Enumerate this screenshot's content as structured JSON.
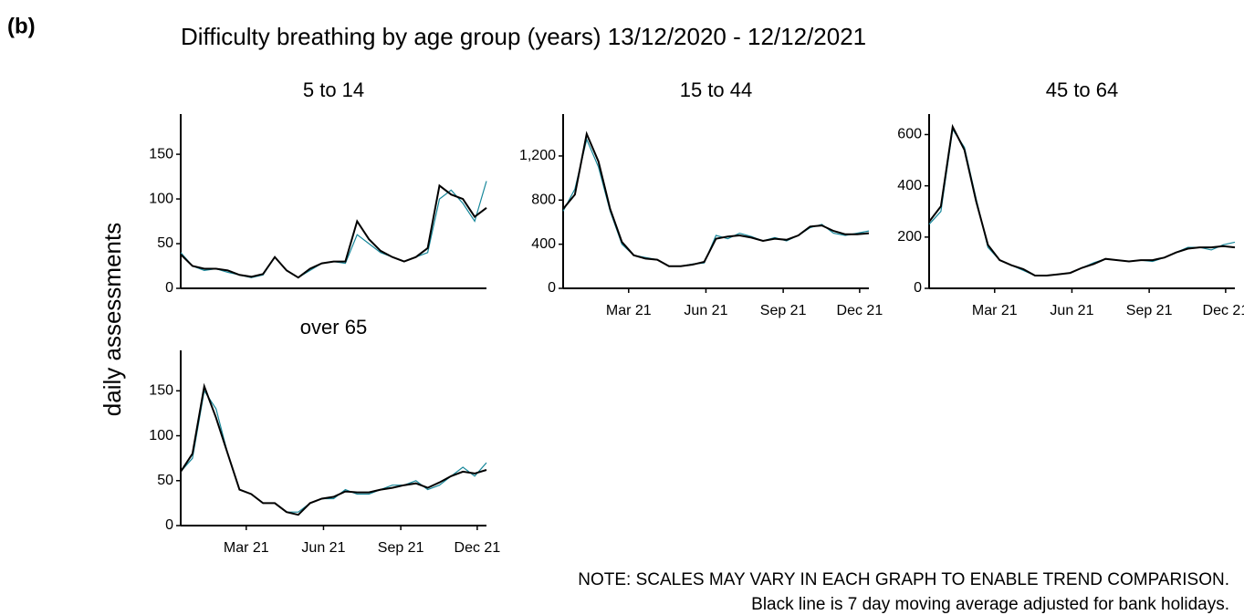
{
  "panel_label": "(b)",
  "title": "Difficulty breathing by age group (years) 13/12/2020 - 12/12/2021",
  "y_label": "daily assessments",
  "notes": [
    "NOTE: SCALES MAY VARY IN EACH GRAPH TO ENABLE TREND COMPARISON.",
    "Black line is 7 day moving average adjusted for bank holidays."
  ],
  "chart_data": [
    {
      "type": "line",
      "title": "5 to 14",
      "x": [
        "2020-12-13",
        "2020-12-27",
        "2021-01-10",
        "2021-01-24",
        "2021-02-07",
        "2021-02-21",
        "2021-03-07",
        "2021-03-21",
        "2021-04-04",
        "2021-04-18",
        "2021-05-02",
        "2021-05-16",
        "2021-05-30",
        "2021-06-13",
        "2021-06-27",
        "2021-07-11",
        "2021-07-25",
        "2021-08-08",
        "2021-08-22",
        "2021-09-05",
        "2021-09-19",
        "2021-10-03",
        "2021-10-17",
        "2021-10-31",
        "2021-11-14",
        "2021-11-28",
        "2021-12-12"
      ],
      "series": [
        {
          "color": "#17879a",
          "values": [
            40,
            25,
            20,
            22,
            18,
            15,
            12,
            15,
            35,
            20,
            12,
            20,
            28,
            30,
            28,
            60,
            50,
            40,
            35,
            30,
            35,
            40,
            100,
            110,
            95,
            75,
            120
          ]
        },
        {
          "color": "#000000",
          "values": [
            38,
            25,
            22,
            22,
            20,
            15,
            13,
            16,
            35,
            20,
            12,
            22,
            28,
            30,
            30,
            75,
            55,
            42,
            35,
            30,
            35,
            45,
            115,
            105,
            100,
            80,
            90
          ]
        }
      ],
      "xlim": [
        "2020-12-13",
        "2021-12-12"
      ],
      "ylim": [
        0,
        195
      ],
      "yticks": [
        0,
        50,
        100,
        150
      ]
    },
    {
      "type": "line",
      "title": "15 to 44",
      "x": [
        "2020-12-13",
        "2020-12-27",
        "2021-01-10",
        "2021-01-24",
        "2021-02-07",
        "2021-02-21",
        "2021-03-07",
        "2021-03-21",
        "2021-04-04",
        "2021-04-18",
        "2021-05-02",
        "2021-05-16",
        "2021-05-30",
        "2021-06-13",
        "2021-06-27",
        "2021-07-11",
        "2021-07-25",
        "2021-08-08",
        "2021-08-22",
        "2021-09-05",
        "2021-09-19",
        "2021-10-03",
        "2021-10-17",
        "2021-10-31",
        "2021-11-14",
        "2021-11-28",
        "2021-12-12"
      ],
      "series": [
        {
          "color": "#17879a",
          "values": [
            700,
            900,
            1350,
            1100,
            700,
            400,
            300,
            280,
            260,
            200,
            200,
            220,
            230,
            480,
            450,
            500,
            470,
            430,
            460,
            430,
            480,
            550,
            580,
            500,
            480,
            500,
            520
          ]
        },
        {
          "color": "#000000",
          "values": [
            720,
            850,
            1400,
            1150,
            720,
            420,
            300,
            270,
            260,
            200,
            200,
            215,
            240,
            450,
            470,
            480,
            460,
            430,
            450,
            440,
            480,
            560,
            570,
            520,
            490,
            490,
            500
          ]
        }
      ],
      "xlim": [
        "2020-12-13",
        "2021-12-12"
      ],
      "ylim": [
        0,
        1580
      ],
      "yticks": [
        0,
        400,
        800,
        {
          "value": 1200,
          "label": "1,200"
        }
      ],
      "xticks": [
        {
          "value": "2021-03-01",
          "label": "Mar 21"
        },
        {
          "value": "2021-06-01",
          "label": "Jun 21"
        },
        {
          "value": "2021-09-01",
          "label": "Sep 21"
        },
        {
          "value": "2021-12-01",
          "label": "Dec 21"
        }
      ]
    },
    {
      "type": "line",
      "title": "45 to 64",
      "x": [
        "2020-12-13",
        "2020-12-27",
        "2021-01-10",
        "2021-01-24",
        "2021-02-07",
        "2021-02-21",
        "2021-03-07",
        "2021-03-21",
        "2021-04-04",
        "2021-04-18",
        "2021-05-02",
        "2021-05-16",
        "2021-05-30",
        "2021-06-13",
        "2021-06-27",
        "2021-07-11",
        "2021-07-25",
        "2021-08-08",
        "2021-08-22",
        "2021-09-05",
        "2021-09-19",
        "2021-10-03",
        "2021-10-17",
        "2021-10-31",
        "2021-11-14",
        "2021-11-28",
        "2021-12-12"
      ],
      "series": [
        {
          "color": "#17879a",
          "values": [
            250,
            300,
            620,
            550,
            350,
            160,
            110,
            90,
            70,
            50,
            50,
            55,
            60,
            80,
            100,
            115,
            110,
            105,
            110,
            105,
            120,
            140,
            160,
            160,
            150,
            170,
            180
          ]
        },
        {
          "color": "#000000",
          "values": [
            260,
            320,
            630,
            540,
            340,
            170,
            110,
            90,
            75,
            50,
            50,
            55,
            60,
            80,
            95,
            115,
            110,
            105,
            110,
            110,
            120,
            140,
            155,
            160,
            160,
            165,
            160
          ]
        }
      ],
      "xlim": [
        "2020-12-13",
        "2021-12-12"
      ],
      "ylim": [
        0,
        680
      ],
      "yticks": [
        0,
        200,
        400,
        600
      ],
      "xticks": [
        {
          "value": "2021-03-01",
          "label": "Mar 21"
        },
        {
          "value": "2021-06-01",
          "label": "Jun 21"
        },
        {
          "value": "2021-09-01",
          "label": "Sep 21"
        },
        {
          "value": "2021-12-01",
          "label": "Dec 21"
        }
      ]
    },
    {
      "type": "line",
      "title": "over 65",
      "x": [
        "2020-12-13",
        "2020-12-27",
        "2021-01-10",
        "2021-01-24",
        "2021-02-07",
        "2021-02-21",
        "2021-03-07",
        "2021-03-21",
        "2021-04-04",
        "2021-04-18",
        "2021-05-02",
        "2021-05-16",
        "2021-05-30",
        "2021-06-13",
        "2021-06-27",
        "2021-07-11",
        "2021-07-25",
        "2021-08-08",
        "2021-08-22",
        "2021-09-05",
        "2021-09-19",
        "2021-10-03",
        "2021-10-17",
        "2021-10-31",
        "2021-11-14",
        "2021-11-28",
        "2021-12-12"
      ],
      "series": [
        {
          "color": "#17879a",
          "values": [
            60,
            75,
            150,
            130,
            80,
            40,
            35,
            25,
            25,
            15,
            15,
            25,
            30,
            30,
            40,
            35,
            35,
            40,
            45,
            45,
            50,
            40,
            45,
            55,
            65,
            55,
            70
          ]
        },
        {
          "color": "#000000",
          "values": [
            60,
            80,
            155,
            120,
            80,
            40,
            35,
            25,
            25,
            15,
            12,
            25,
            30,
            32,
            38,
            37,
            37,
            40,
            42,
            45,
            47,
            42,
            48,
            55,
            60,
            58,
            62
          ]
        }
      ],
      "xlim": [
        "2020-12-13",
        "2021-12-12"
      ],
      "ylim": [
        0,
        195
      ],
      "yticks": [
        0,
        50,
        100,
        150
      ],
      "xticks": [
        {
          "value": "2021-03-01",
          "label": "Mar 21"
        },
        {
          "value": "2021-06-01",
          "label": "Jun 21"
        },
        {
          "value": "2021-09-01",
          "label": "Sep 21"
        },
        {
          "value": "2021-12-01",
          "label": "Dec 21"
        }
      ]
    }
  ]
}
